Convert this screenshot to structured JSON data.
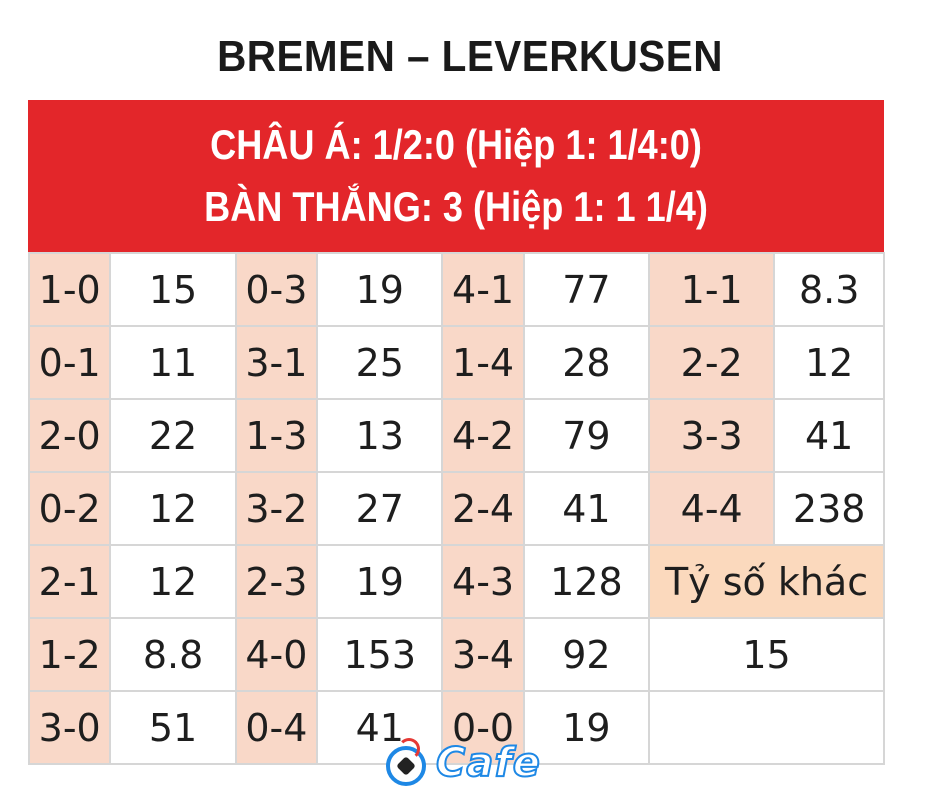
{
  "title": "BREMEN – LEVERKUSEN",
  "banner": {
    "line1": "CHÂU Á: 1/2:0 (Hiệp 1: 1/4:0)",
    "line2": "BÀN THẮNG: 3 (Hiệp 1: 1 1/4)"
  },
  "grid": {
    "rows": [
      [
        {
          "s": "1-0",
          "o": "15"
        },
        {
          "s": "0-3",
          "o": "19"
        },
        {
          "s": "4-1",
          "o": "77"
        },
        {
          "s": "1-1",
          "o": "8.3"
        }
      ],
      [
        {
          "s": "0-1",
          "o": "11"
        },
        {
          "s": "3-1",
          "o": "25"
        },
        {
          "s": "1-4",
          "o": "28"
        },
        {
          "s": "2-2",
          "o": "12"
        }
      ],
      [
        {
          "s": "2-0",
          "o": "22"
        },
        {
          "s": "1-3",
          "o": "13"
        },
        {
          "s": "4-2",
          "o": "79"
        },
        {
          "s": "3-3",
          "o": "41"
        }
      ],
      [
        {
          "s": "0-2",
          "o": "12"
        },
        {
          "s": "3-2",
          "o": "27"
        },
        {
          "s": "2-4",
          "o": "41"
        },
        {
          "s": "4-4",
          "o": "238"
        }
      ],
      [
        {
          "s": "2-1",
          "o": "12"
        },
        {
          "s": "2-3",
          "o": "19"
        },
        {
          "s": "4-3",
          "o": "128"
        }
      ],
      [
        {
          "s": "1-2",
          "o": "8.8"
        },
        {
          "s": "4-0",
          "o": "153"
        },
        {
          "s": "3-4",
          "o": "92"
        }
      ],
      [
        {
          "s": "3-0",
          "o": "51"
        },
        {
          "s": "0-4",
          "o": "41"
        },
        {
          "s": "0-0",
          "o": "19"
        }
      ]
    ],
    "other_label": "Tỷ số khác",
    "other_value": "15"
  },
  "logo": {
    "text": "Cafe"
  },
  "colors": {
    "banner_red": "#e3262a",
    "score_cell": "#f9d8c8",
    "other_label_cell": "#fbd9bd",
    "logo_blue": "#1e88e5"
  }
}
